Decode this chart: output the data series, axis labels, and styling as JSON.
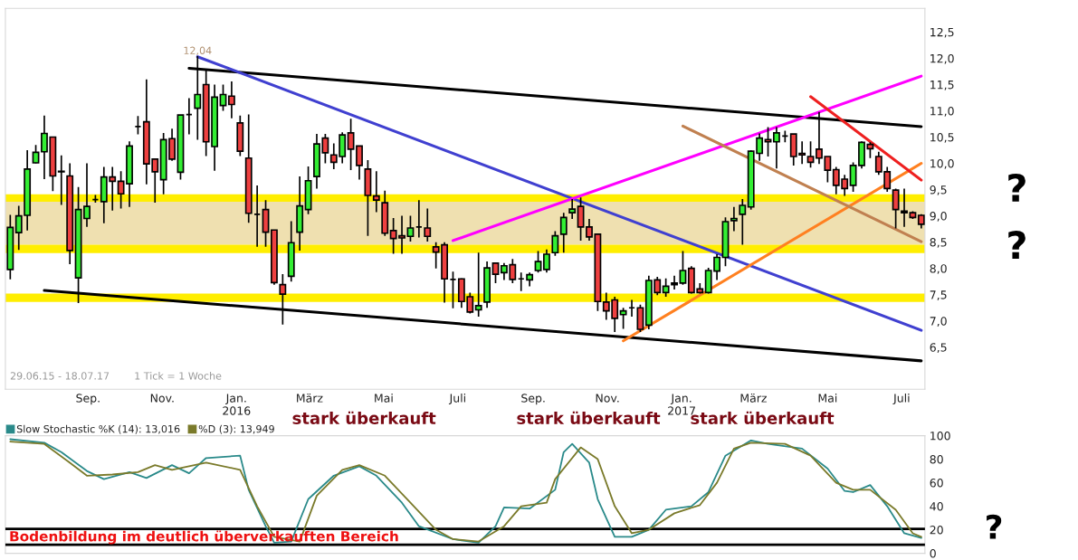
{
  "chart_data": [
    {
      "type": "candlestick",
      "x": [
        "2015-06-29",
        "2015-07-06",
        "2015-07-13",
        "2015-07-20",
        "2015-07-27",
        "2015-08-03",
        "2015-08-10",
        "2015-08-17",
        "2015-08-24",
        "2015-08-31",
        "2015-09-07",
        "2015-09-14",
        "2015-09-21",
        "2015-09-28",
        "2015-10-05",
        "2015-10-12",
        "2015-10-19",
        "2015-10-26",
        "2015-11-02",
        "2015-11-09",
        "2015-11-16",
        "2015-11-23",
        "2015-11-30",
        "2015-12-07",
        "2015-12-14",
        "2015-12-21",
        "2015-12-28",
        "2016-01-04",
        "2016-01-11",
        "2016-01-18",
        "2016-01-25",
        "2016-02-01",
        "2016-02-08",
        "2016-02-15",
        "2016-02-22",
        "2016-02-29",
        "2016-03-07",
        "2016-03-14",
        "2016-03-21",
        "2016-03-28",
        "2016-04-04",
        "2016-04-11",
        "2016-04-18",
        "2016-04-25",
        "2016-05-02",
        "2016-05-09",
        "2016-05-16",
        "2016-05-23",
        "2016-05-30",
        "2016-06-06",
        "2016-06-13",
        "2016-06-20",
        "2016-06-27",
        "2016-07-04",
        "2016-07-11",
        "2016-07-18",
        "2016-07-25",
        "2016-08-01",
        "2016-08-08",
        "2016-08-15",
        "2016-08-22",
        "2016-08-29",
        "2016-09-05",
        "2016-09-12",
        "2016-09-19",
        "2016-09-26",
        "2016-10-03",
        "2016-10-10",
        "2016-10-17",
        "2016-10-24",
        "2016-10-31",
        "2016-11-07",
        "2016-11-14",
        "2016-11-21",
        "2016-11-28",
        "2016-12-05",
        "2016-12-12",
        "2016-12-19",
        "2016-12-26",
        "2017-01-02",
        "2017-01-09",
        "2017-01-16",
        "2017-01-23",
        "2017-01-30",
        "2017-02-06",
        "2017-02-13",
        "2017-02-20",
        "2017-02-27",
        "2017-03-06",
        "2017-03-13",
        "2017-03-20",
        "2017-03-27",
        "2017-04-03",
        "2017-04-10",
        "2017-04-17",
        "2017-04-24",
        "2017-05-01",
        "2017-05-08",
        "2017-05-15",
        "2017-05-22",
        "2017-05-29",
        "2017-06-05",
        "2017-06-12",
        "2017-06-19",
        "2017-06-26",
        "2017-07-03",
        "2017-07-10",
        "2017-07-17"
      ],
      "ohlc": [
        [
          7.98,
          9.02,
          7.79,
          8.78
        ],
        [
          8.68,
          9.19,
          8.35,
          9.0
        ],
        [
          9.01,
          10.25,
          8.72,
          9.89
        ],
        [
          10.01,
          10.35,
          10.0,
          10.21
        ],
        [
          10.22,
          10.91,
          9.7,
          10.57
        ],
        [
          10.5,
          10.5,
          9.47,
          9.76
        ],
        [
          9.85,
          10.15,
          9.21,
          9.84
        ],
        [
          9.76,
          10.0,
          8.08,
          8.34
        ],
        [
          7.82,
          9.55,
          7.34,
          9.12
        ],
        [
          8.95,
          10.0,
          8.79,
          9.18
        ],
        [
          9.31,
          9.4,
          9.25,
          9.31
        ],
        [
          9.27,
          9.93,
          8.86,
          9.74
        ],
        [
          9.74,
          9.93,
          9.1,
          9.66
        ],
        [
          9.66,
          9.85,
          9.14,
          9.42
        ],
        [
          9.61,
          10.42,
          9.17,
          10.33
        ],
        [
          10.7,
          10.9,
          10.55,
          10.7
        ],
        [
          10.79,
          11.6,
          9.6,
          9.99
        ],
        [
          10.08,
          10.08,
          9.25,
          9.84
        ],
        [
          9.69,
          10.58,
          9.41,
          10.45
        ],
        [
          10.47,
          10.66,
          10.05,
          10.08
        ],
        [
          9.83,
          10.92,
          9.69,
          10.92
        ],
        [
          10.93,
          11.24,
          10.55,
          10.93
        ],
        [
          11.05,
          12.04,
          10.45,
          11.31
        ],
        [
          11.5,
          11.77,
          10.14,
          10.41
        ],
        [
          10.32,
          11.5,
          9.86,
          11.26
        ],
        [
          11.1,
          11.5,
          11.0,
          11.31
        ],
        [
          11.28,
          11.56,
          10.86,
          11.12
        ],
        [
          10.77,
          10.91,
          10.14,
          10.23
        ],
        [
          10.1,
          10.93,
          8.87,
          9.05
        ],
        [
          9.03,
          9.58,
          8.41,
          9.03
        ],
        [
          9.12,
          9.3,
          8.41,
          8.69
        ],
        [
          8.73,
          8.73,
          7.69,
          7.73
        ],
        [
          7.69,
          7.89,
          6.93,
          7.51
        ],
        [
          7.85,
          8.9,
          7.75,
          8.49
        ],
        [
          8.69,
          9.75,
          8.34,
          9.19
        ],
        [
          9.12,
          9.94,
          9.03,
          9.67
        ],
        [
          9.75,
          10.56,
          9.52,
          10.37
        ],
        [
          10.48,
          10.56,
          10.0,
          10.2
        ],
        [
          10.16,
          10.38,
          9.89,
          10.02
        ],
        [
          10.13,
          10.59,
          10.0,
          10.54
        ],
        [
          10.58,
          10.85,
          9.87,
          10.27
        ],
        [
          10.33,
          10.33,
          9.69,
          9.96
        ],
        [
          9.89,
          10.06,
          8.62,
          9.39
        ],
        [
          9.38,
          9.85,
          9.07,
          9.3
        ],
        [
          9.25,
          9.48,
          8.62,
          8.67
        ],
        [
          8.72,
          8.96,
          8.28,
          8.57
        ],
        [
          8.62,
          9.0,
          8.28,
          8.58
        ],
        [
          8.61,
          9.0,
          8.51,
          8.77
        ],
        [
          8.79,
          9.3,
          8.59,
          8.79
        ],
        [
          8.77,
          9.14,
          8.51,
          8.61
        ],
        [
          8.41,
          8.5,
          8.0,
          8.31
        ],
        [
          8.45,
          8.5,
          7.35,
          7.8
        ],
        [
          7.79,
          7.94,
          7.24,
          7.79
        ],
        [
          7.8,
          7.81,
          7.25,
          7.37
        ],
        [
          7.46,
          7.54,
          7.14,
          7.17
        ],
        [
          7.21,
          8.3,
          7.08,
          7.29
        ],
        [
          7.36,
          8.13,
          7.25,
          8.01
        ],
        [
          8.1,
          8.1,
          7.72,
          7.89
        ],
        [
          7.92,
          8.1,
          7.78,
          8.05
        ],
        [
          8.07,
          8.18,
          7.72,
          7.79
        ],
        [
          7.8,
          7.92,
          7.57,
          7.8
        ],
        [
          7.78,
          7.92,
          7.66,
          7.88
        ],
        [
          7.96,
          8.33,
          7.92,
          8.13
        ],
        [
          7.98,
          8.36,
          7.92,
          8.27
        ],
        [
          8.3,
          8.71,
          8.24,
          8.62
        ],
        [
          8.65,
          9.06,
          8.3,
          8.97
        ],
        [
          9.06,
          9.32,
          8.94,
          9.13
        ],
        [
          9.18,
          9.35,
          8.53,
          8.79
        ],
        [
          8.79,
          8.94,
          8.53,
          8.6
        ],
        [
          8.65,
          8.65,
          7.19,
          7.37
        ],
        [
          7.36,
          7.54,
          7.02,
          7.19
        ],
        [
          7.4,
          7.46,
          6.79,
          7.05
        ],
        [
          7.12,
          7.25,
          6.85,
          7.19
        ],
        [
          7.25,
          7.4,
          7.08,
          7.25
        ],
        [
          7.25,
          7.31,
          6.79,
          6.84
        ],
        [
          6.92,
          7.86,
          6.84,
          7.77
        ],
        [
          7.78,
          7.84,
          7.49,
          7.54
        ],
        [
          7.54,
          7.81,
          7.46,
          7.66
        ],
        [
          7.69,
          7.86,
          7.6,
          7.72
        ],
        [
          7.72,
          8.33,
          7.69,
          7.96
        ],
        [
          8.0,
          8.04,
          7.52,
          7.54
        ],
        [
          7.61,
          7.72,
          7.52,
          7.54
        ],
        [
          7.54,
          8.01,
          7.52,
          7.96
        ],
        [
          7.95,
          8.27,
          7.78,
          8.21
        ],
        [
          8.21,
          8.97,
          8.04,
          8.89
        ],
        [
          8.91,
          9.17,
          8.71,
          8.95
        ],
        [
          9.03,
          9.32,
          8.45,
          9.2
        ],
        [
          9.17,
          10.25,
          9.12,
          10.23
        ],
        [
          10.19,
          10.57,
          10.05,
          10.48
        ],
        [
          10.45,
          10.69,
          10.13,
          10.41
        ],
        [
          10.41,
          10.69,
          9.9,
          10.58
        ],
        [
          10.52,
          10.62,
          10.4,
          10.52
        ],
        [
          10.56,
          10.56,
          9.96,
          10.13
        ],
        [
          10.19,
          10.42,
          9.99,
          10.16
        ],
        [
          10.13,
          10.42,
          9.92,
          10.02
        ],
        [
          10.27,
          10.98,
          9.99,
          10.1
        ],
        [
          10.13,
          10.13,
          9.64,
          9.87
        ],
        [
          9.88,
          9.93,
          9.41,
          9.58
        ],
        [
          9.7,
          9.78,
          9.38,
          9.52
        ],
        [
          9.58,
          10.02,
          9.46,
          9.96
        ],
        [
          9.96,
          10.42,
          9.9,
          10.4
        ],
        [
          10.36,
          10.4,
          10.1,
          10.28
        ],
        [
          10.13,
          10.22,
          9.78,
          9.84
        ],
        [
          9.84,
          9.93,
          9.46,
          9.52
        ],
        [
          9.49,
          9.52,
          8.76,
          9.12
        ],
        [
          9.09,
          9.52,
          8.79,
          9.06
        ],
        [
          9.06,
          9.09,
          8.94,
          8.97
        ],
        [
          9.01,
          9.03,
          8.76,
          8.84
        ]
      ],
      "series": [
        {
          "type": "line",
          "color": "#000000",
          "x": [
            "2015-11-23",
            "2017-07-17"
          ],
          "values": [
            11.81,
            10.7
          ]
        },
        {
          "type": "line",
          "color": "#000000",
          "x": [
            "2015-07-27",
            "2017-07-17"
          ],
          "values": [
            7.58,
            6.24
          ]
        },
        {
          "type": "line",
          "color": "#4040d0",
          "x": [
            "2015-11-30",
            "2017-07-17"
          ],
          "values": [
            12.03,
            6.82
          ]
        },
        {
          "type": "line",
          "color": "#ff00ff",
          "x": [
            "2016-06-27",
            "2017-07-17"
          ],
          "values": [
            8.53,
            11.66
          ]
        },
        {
          "type": "line",
          "color": "#ff8020",
          "x": [
            "2016-11-14",
            "2017-07-17"
          ],
          "values": [
            6.62,
            10.0
          ]
        },
        {
          "type": "line",
          "color": "#ee2020",
          "x": [
            "2017-04-17",
            "2017-07-17"
          ],
          "values": [
            11.27,
            9.68
          ]
        },
        {
          "type": "line",
          "color": "#c08050",
          "x": [
            "2017-01-02",
            "2017-07-17"
          ],
          "values": [
            10.71,
            8.51
          ]
        }
      ],
      "bands": [
        {
          "axis": "y",
          "from": 8.45,
          "to": 9.27,
          "color": "#efe0b0"
        },
        {
          "axis": "y",
          "from": 9.27,
          "to": 9.41,
          "color": "#ffee00"
        },
        {
          "axis": "y",
          "from": 8.29,
          "to": 8.45,
          "color": "#ffee00"
        },
        {
          "axis": "y",
          "from": 7.36,
          "to": 7.52,
          "color": "#ffee00"
        }
      ],
      "annotations": [
        "29.06.15 - 18.07.17",
        "1 Tick = 1 Woche",
        {
          "text": "12,04",
          "x": "2015-11-30",
          "y": 12.04
        },
        "?",
        "?"
      ],
      "xlim": [
        "2015-06-25",
        "2017-07-20"
      ],
      "ylim": [
        5.7,
        12.95
      ],
      "xticks": [
        {
          "value": "2015-09-01",
          "label": "Sep."
        },
        {
          "value": "2015-11-01",
          "label": "Nov."
        },
        {
          "value": "2016-01-01",
          "label": "Jan.\n2016"
        },
        {
          "value": "2016-03-01",
          "label": "März"
        },
        {
          "value": "2016-05-01",
          "label": "Mai"
        },
        {
          "value": "2016-07-01",
          "label": "Juli"
        },
        {
          "value": "2016-09-01",
          "label": "Sep."
        },
        {
          "value": "2016-11-01",
          "label": "Nov."
        },
        {
          "value": "2017-01-01",
          "label": "Jan.\n2017"
        },
        {
          "value": "2017-03-01",
          "label": "März"
        },
        {
          "value": "2017-05-01",
          "label": "Mai"
        },
        {
          "value": "2017-07-01",
          "label": "Juli"
        }
      ],
      "yticks": [
        {
          "value": 6.5,
          "label": "6,5"
        },
        {
          "value": 7.0,
          "label": "7,0"
        },
        {
          "value": 7.5,
          "label": "7,5"
        },
        {
          "value": 8.0,
          "label": "8,0"
        },
        {
          "value": 8.5,
          "label": "8,5"
        },
        {
          "value": 9.0,
          "label": "9,0"
        },
        {
          "value": 9.5,
          "label": "9,5"
        },
        {
          "value": 10.0,
          "label": "10,0"
        },
        {
          "value": 10.5,
          "label": "10,5"
        },
        {
          "value": 11.0,
          "label": "11,0"
        },
        {
          "value": 11.5,
          "label": "11,5"
        },
        {
          "value": 12.0,
          "label": "12,0"
        },
        {
          "value": 12.5,
          "label": "12,5"
        }
      ]
    },
    {
      "type": "line",
      "legend": "top left",
      "tick_labels": "y",
      "series": [
        {
          "name": "Slow Stochastic %K (14): 13,016",
          "color": "#2a8a8a",
          "x": [
            "2015-06-29",
            "2015-07-27",
            "2015-08-10",
            "2015-08-31",
            "2015-09-14",
            "2015-10-05",
            "2015-10-19",
            "2015-11-09",
            "2015-11-23",
            "2015-12-07",
            "2016-01-04",
            "2016-01-11",
            "2016-01-25",
            "2016-02-01",
            "2016-02-15",
            "2016-02-29",
            "2016-03-21",
            "2016-04-11",
            "2016-04-25",
            "2016-05-16",
            "2016-05-30",
            "2016-06-27",
            "2016-07-18",
            "2016-08-01",
            "2016-08-08",
            "2016-08-29",
            "2016-09-19",
            "2016-09-26",
            "2016-10-03",
            "2016-10-17",
            "2016-10-24",
            "2016-11-07",
            "2016-11-21",
            "2016-12-05",
            "2016-12-19",
            "2017-01-09",
            "2017-01-23",
            "2017-02-06",
            "2017-02-27",
            "2017-03-13",
            "2017-04-10",
            "2017-05-01",
            "2017-05-15",
            "2017-05-22",
            "2017-06-05",
            "2017-06-19",
            "2017-07-03",
            "2017-07-17"
          ],
          "values": [
            97,
            94,
            86,
            70,
            63,
            69,
            64,
            75,
            68,
            81,
            83,
            54,
            23,
            9,
            10,
            46,
            66,
            74,
            66,
            43,
            23,
            12,
            9,
            23,
            39,
            38,
            54,
            86,
            93,
            77,
            46,
            14,
            14,
            20,
            37,
            40,
            52,
            83,
            96,
            93,
            89,
            72,
            53,
            52,
            58,
            40,
            17,
            13
          ]
        },
        {
          "name": "%D (3): 13,949",
          "color": "#7a7a2a",
          "x": [
            "2015-06-29",
            "2015-07-27",
            "2015-08-17",
            "2015-08-31",
            "2015-09-21",
            "2015-10-12",
            "2015-10-26",
            "2015-11-09",
            "2015-11-23",
            "2015-12-07",
            "2016-01-04",
            "2016-01-18",
            "2016-02-01",
            "2016-02-22",
            "2016-03-07",
            "2016-03-28",
            "2016-04-11",
            "2016-05-02",
            "2016-05-23",
            "2016-06-13",
            "2016-06-27",
            "2016-07-18",
            "2016-08-08",
            "2016-08-22",
            "2016-09-12",
            "2016-09-19",
            "2016-10-10",
            "2016-10-24",
            "2016-11-07",
            "2016-11-21",
            "2016-12-05",
            "2016-12-26",
            "2017-01-16",
            "2017-01-30",
            "2017-02-13",
            "2017-02-27",
            "2017-03-27",
            "2017-04-17",
            "2017-05-08",
            "2017-05-22",
            "2017-06-05",
            "2017-06-26",
            "2017-07-10",
            "2017-07-17"
          ],
          "values": [
            95,
            93,
            77,
            66,
            67,
            69,
            75,
            71,
            74,
            77,
            71,
            40,
            14,
            10,
            49,
            71,
            75,
            66,
            43,
            20,
            12,
            10,
            23,
            40,
            43,
            63,
            90,
            80,
            40,
            17,
            20,
            34,
            41,
            60,
            89,
            94,
            93,
            83,
            60,
            54,
            54,
            37,
            17,
            14
          ]
        }
      ],
      "ref_lines": [
        {
          "axis": "y",
          "value": 20.8,
          "color": "#000000",
          "label": "Bodenbildung im deutlich überverkauften Bereich"
        },
        {
          "axis": "y",
          "value": 7.3,
          "color": "#000000"
        }
      ],
      "annotations": [
        "stark überkauft",
        "stark überkauft",
        "stark überkauft",
        "?"
      ],
      "xlim": [
        "2015-06-25",
        "2017-07-20"
      ],
      "ylim": [
        0,
        100
      ],
      "yticks": [
        0,
        20,
        40,
        60,
        80,
        100
      ]
    }
  ]
}
